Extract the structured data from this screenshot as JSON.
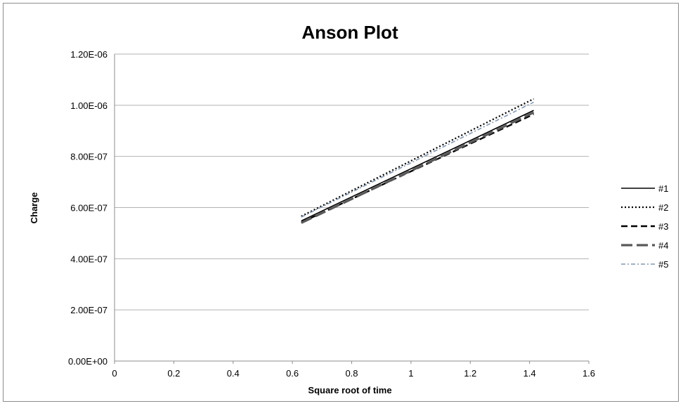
{
  "chart_data": {
    "type": "line",
    "title": "Anson Plot",
    "xlabel": "Square root of time",
    "ylabel": "Charge",
    "xlim": [
      0,
      1.6
    ],
    "ylim": [
      0,
      1.2e-06
    ],
    "x_ticks": [
      "0",
      "0.2",
      "0.4",
      "0.6",
      "0.8",
      "1",
      "1.2",
      "1.4",
      "1.6"
    ],
    "y_ticks": [
      "0.00E+00",
      "2.00E-07",
      "4.00E-07",
      "6.00E-07",
      "8.00E-07",
      "1.00E-06",
      "1.20E-06"
    ],
    "grid": "horizontal",
    "legend": "right",
    "series": [
      {
        "name": "#1",
        "x": [
          0.63,
          1.414
        ],
        "y": [
          5.48e-07,
          9.8e-07
        ],
        "color": "#000000",
        "style": "solid"
      },
      {
        "name": "#2",
        "x": [
          0.63,
          1.414
        ],
        "y": [
          5.66e-07,
          1.025e-06
        ],
        "color": "#000000",
        "style": "dotted"
      },
      {
        "name": "#3",
        "x": [
          0.63,
          1.414
        ],
        "y": [
          5.42e-07,
          9.65e-07
        ],
        "color": "#000000",
        "style": "dashed"
      },
      {
        "name": "#4",
        "x": [
          0.63,
          1.414
        ],
        "y": [
          5.4e-07,
          9.72e-07
        ],
        "color": "#595959",
        "style": "longdash"
      },
      {
        "name": "#5",
        "x": [
          0.63,
          1.414
        ],
        "y": [
          5.63e-07,
          1.012e-06
        ],
        "color": "#8497b0",
        "style": "dashdot"
      }
    ]
  }
}
